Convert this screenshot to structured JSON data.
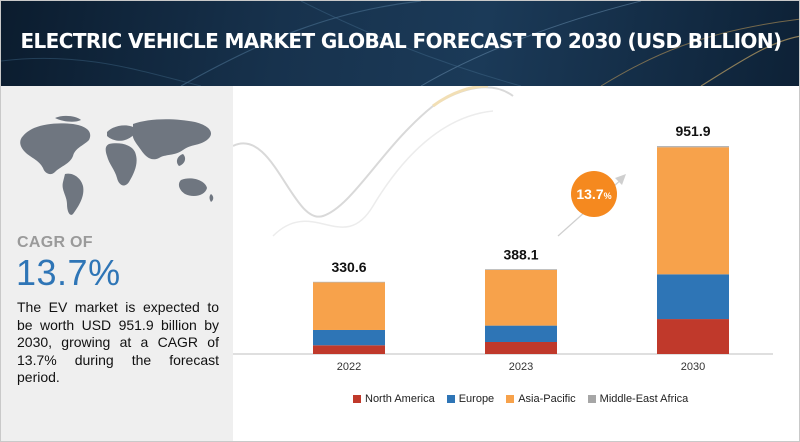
{
  "banner": {
    "title": "ELECTRIC VEHICLE MARKET GLOBAL FORECAST TO 2030 (USD BILLION)"
  },
  "sidebar": {
    "cagr_label": "CAGR OF",
    "cagr_value": "13.7%",
    "description": "The EV market is expected to be worth USD 951.9 billion by 2030, growing at a CAGR of 13.7% during the forecast period."
  },
  "badge": {
    "number": "13.7",
    "unit": "%"
  },
  "colors": {
    "north_america": "#c0392b",
    "europe": "#2e75b6",
    "asia_pacific": "#f7a24b",
    "middle_east_africa": "#a6a6a6",
    "badge": "#f5891f"
  },
  "chart_data": {
    "type": "bar",
    "stacked": true,
    "categories": [
      "2022",
      "2023",
      "2030"
    ],
    "totals": [
      330.6,
      388.1,
      951.9
    ],
    "total_labels": [
      "330.6",
      "388.1",
      "951.9"
    ],
    "series": [
      {
        "name": "North America",
        "values": [
          40,
          55,
          160
        ],
        "color": "#c0392b"
      },
      {
        "name": "Europe",
        "values": [
          70,
          75,
          205
        ],
        "color": "#2e75b6"
      },
      {
        "name": "Asia-Pacific",
        "values": [
          218,
          255,
          582
        ],
        "color": "#f7a24b"
      },
      {
        "name": "Middle-East Africa",
        "values": [
          2.6,
          3.1,
          4.9
        ],
        "color": "#a6a6a6"
      }
    ],
    "ylim": [
      0,
      1000
    ],
    "legend_position": "bottom",
    "grid": false
  }
}
